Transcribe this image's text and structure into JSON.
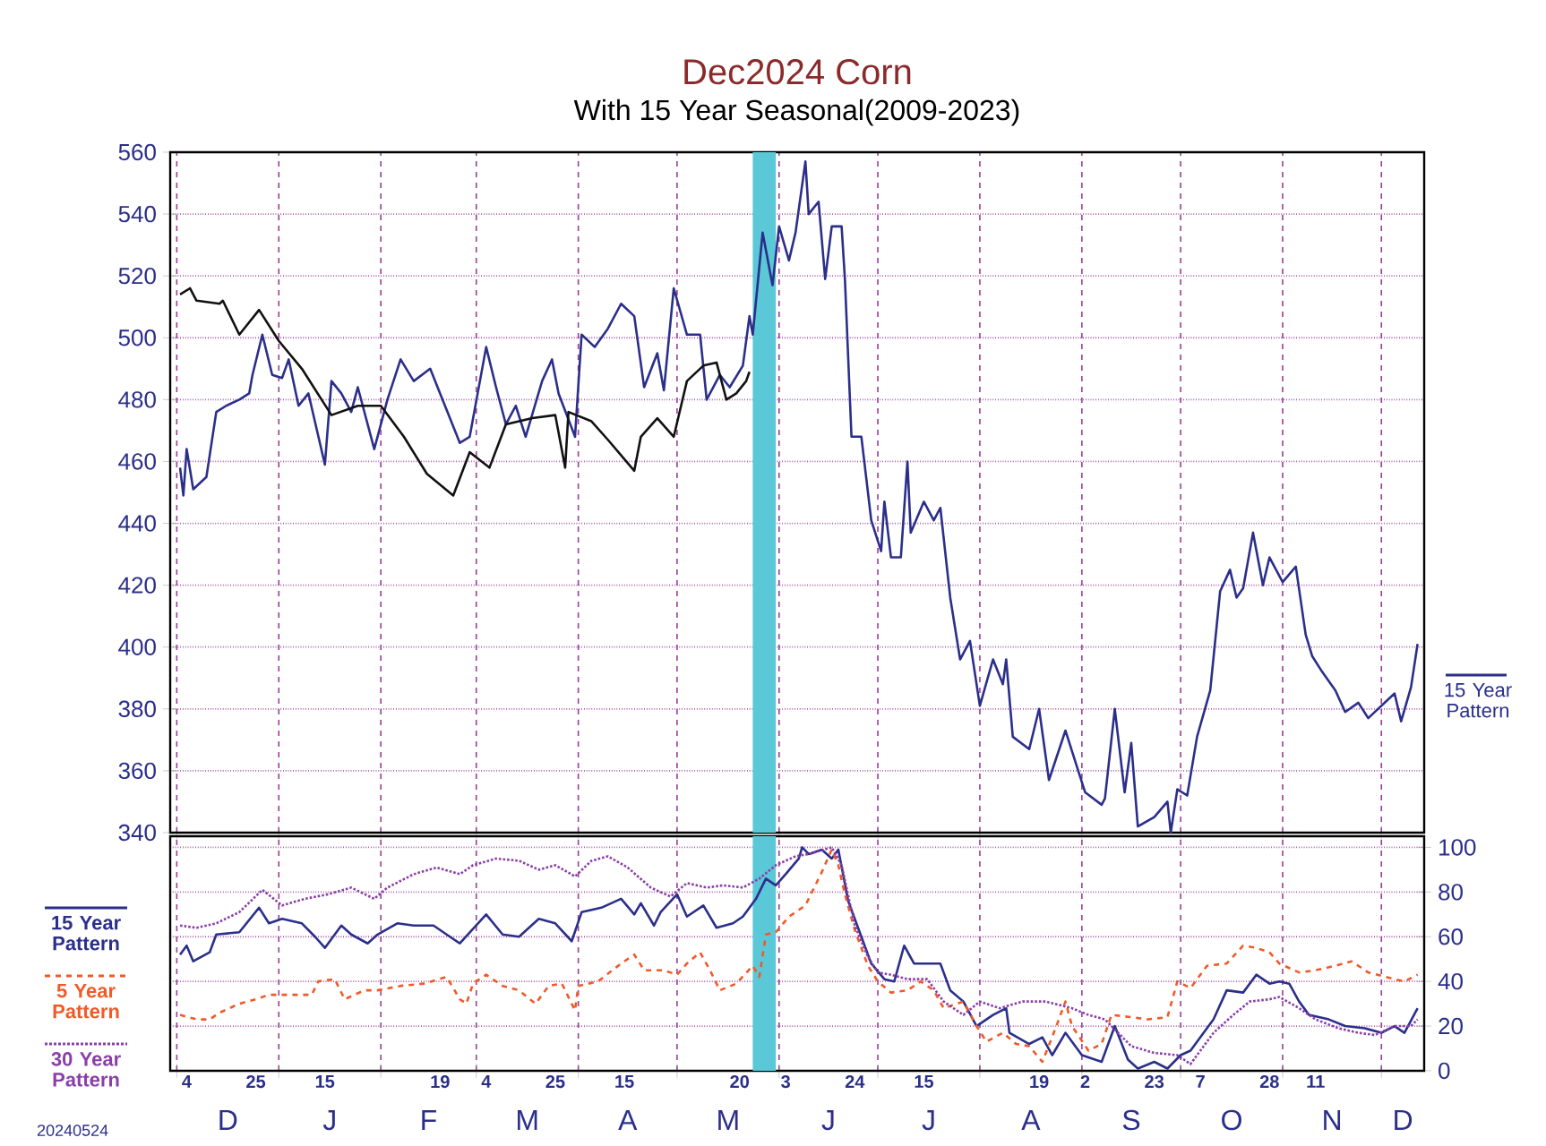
{
  "chart_data": [
    {
      "type": "line",
      "title": "Dec2024 Corn",
      "subtitle": "With 15 Year Seasonal(2009-2023)",
      "xlim": [
        "2023-11-29",
        "2024-12-14"
      ],
      "ylim": [
        340,
        560
      ],
      "yticks": [
        340,
        360,
        380,
        400,
        420,
        440,
        460,
        480,
        500,
        520,
        540,
        560
      ],
      "xticks": [
        {
          "value": "2023-12-01",
          "label": null
        },
        {
          "value": "2024-01-01",
          "label": null
        },
        {
          "value": "2024-02-01",
          "label": null
        },
        {
          "value": "2024-03-01",
          "label": null
        },
        {
          "value": "2024-04-01",
          "label": null
        },
        {
          "value": "2024-05-01",
          "label": null
        },
        {
          "value": "2024-06-01",
          "label": null
        },
        {
          "value": "2024-07-01",
          "label": null
        },
        {
          "value": "2024-08-01",
          "label": null
        },
        {
          "value": "2024-09-01",
          "label": null
        },
        {
          "value": "2024-10-01",
          "label": null
        },
        {
          "value": "2024-11-01",
          "label": null
        },
        {
          "value": "2024-12-01",
          "label": null
        }
      ],
      "tick_labels": "y",
      "grid": true,
      "legend": "right",
      "bands": [
        {
          "axis": "x",
          "from": "2024-05-24",
          "to": "2024-05-31",
          "color": "#5bc8d8"
        }
      ],
      "series": [
        {
          "name": "15 Year Pattern",
          "color": "#2b2f8a",
          "line_style": "solid",
          "x": [
            "2023-12-02",
            "2023-12-03",
            "2023-12-04",
            "2023-12-06",
            "2023-12-10",
            "2023-12-13",
            "2023-12-16",
            "2023-12-20",
            "2023-12-23",
            "2023-12-24",
            "2023-12-27",
            "2023-12-30",
            "2024-01-02",
            "2024-01-04",
            "2024-01-07",
            "2024-01-10",
            "2024-01-15",
            "2024-01-17",
            "2024-01-20",
            "2024-01-23",
            "2024-01-25",
            "2024-01-30",
            "2024-02-03",
            "2024-02-07",
            "2024-02-11",
            "2024-02-16",
            "2024-02-19",
            "2024-02-25",
            "2024-02-28",
            "2024-03-04",
            "2024-03-07",
            "2024-03-10",
            "2024-03-13",
            "2024-03-16",
            "2024-03-21",
            "2024-03-24",
            "2024-03-26",
            "2024-03-31",
            "2024-04-02",
            "2024-04-06",
            "2024-04-10",
            "2024-04-14",
            "2024-04-18",
            "2024-04-21",
            "2024-04-25",
            "2024-04-27",
            "2024-04-30",
            "2024-05-04",
            "2024-05-08",
            "2024-05-10",
            "2024-05-14",
            "2024-05-17",
            "2024-05-21",
            "2024-05-23",
            "2024-05-24",
            "2024-05-27",
            "2024-05-30",
            "2024-06-01",
            "2024-06-04",
            "2024-06-06",
            "2024-06-09",
            "2024-06-10",
            "2024-06-13",
            "2024-06-15",
            "2024-06-17",
            "2024-06-20",
            "2024-06-21",
            "2024-06-23",
            "2024-06-26",
            "2024-06-29",
            "2024-07-02",
            "2024-07-03",
            "2024-07-05",
            "2024-07-08",
            "2024-07-10",
            "2024-07-11",
            "2024-07-15",
            "2024-07-18",
            "2024-07-20",
            "2024-07-23",
            "2024-07-26",
            "2024-07-29",
            "2024-08-01",
            "2024-08-05",
            "2024-08-08",
            "2024-08-09",
            "2024-08-11",
            "2024-08-16",
            "2024-08-19",
            "2024-08-22",
            "2024-08-27",
            "2024-08-30",
            "2024-09-02",
            "2024-09-07",
            "2024-09-08",
            "2024-09-11",
            "2024-09-14",
            "2024-09-16",
            "2024-09-18",
            "2024-09-23",
            "2024-09-27",
            "2024-09-28",
            "2024-09-30",
            "2024-10-03",
            "2024-10-06",
            "2024-10-10",
            "2024-10-13",
            "2024-10-16",
            "2024-10-18",
            "2024-10-20",
            "2024-10-23",
            "2024-10-26",
            "2024-10-28",
            "2024-11-01",
            "2024-11-05",
            "2024-11-08",
            "2024-11-10",
            "2024-11-13",
            "2024-11-17",
            "2024-11-20",
            "2024-11-24",
            "2024-11-27",
            "2024-12-01",
            "2024-12-05",
            "2024-12-07",
            "2024-12-10",
            "2024-12-12"
          ],
          "values": [
            458,
            449,
            464,
            451,
            455,
            476,
            478,
            480,
            482,
            488,
            501,
            488,
            487,
            493,
            478,
            482,
            459,
            486,
            482,
            476,
            484,
            464,
            480,
            493,
            486,
            490,
            482,
            466,
            468,
            497,
            484,
            472,
            478,
            468,
            486,
            493,
            482,
            468,
            501,
            497,
            503,
            511,
            507,
            484,
            495,
            483,
            516,
            501,
            501,
            480,
            488,
            484,
            491,
            507,
            501,
            534,
            517,
            536,
            525,
            534,
            557,
            540,
            544,
            519,
            536,
            536,
            519,
            468,
            468,
            441,
            431,
            447,
            429,
            429,
            460,
            437,
            447,
            441,
            445,
            416,
            396,
            402,
            381,
            396,
            388,
            396,
            371,
            367,
            380,
            357,
            373,
            363,
            353,
            349,
            351,
            380,
            353,
            369,
            342,
            345,
            350,
            340,
            354,
            352,
            371,
            386,
            418,
            425,
            416,
            419,
            437,
            420,
            429,
            421,
            426,
            404,
            397,
            392,
            386,
            379,
            382,
            377,
            381,
            385,
            376,
            387,
            401
          ]
        },
        {
          "color": "#111111",
          "line_style": "solid",
          "x": [
            "2023-12-02",
            "2023-12-05",
            "2023-12-07",
            "2023-12-14",
            "2023-12-15",
            "2023-12-20",
            "2023-12-26",
            "2024-01-01",
            "2024-01-08",
            "2024-01-17",
            "2024-01-25",
            "2024-02-01",
            "2024-02-08",
            "2024-02-15",
            "2024-02-23",
            "2024-02-28",
            "2024-03-05",
            "2024-03-10",
            "2024-03-18",
            "2024-03-25",
            "2024-03-28",
            "2024-03-29",
            "2024-04-05",
            "2024-04-10",
            "2024-04-18",
            "2024-04-20",
            "2024-04-25",
            "2024-04-30",
            "2024-05-04",
            "2024-05-09",
            "2024-05-13",
            "2024-05-16",
            "2024-05-19",
            "2024-05-22",
            "2024-05-23"
          ],
          "values": [
            514,
            516,
            512,
            511,
            512,
            501,
            509,
            499,
            490,
            475,
            478,
            478,
            468,
            456,
            449,
            463,
            458,
            472,
            474,
            475,
            458,
            476,
            473,
            467,
            457,
            468,
            474,
            468,
            486,
            491,
            492,
            480,
            482,
            486,
            489
          ]
        }
      ]
    },
    {
      "type": "line",
      "xlim": [
        "2023-11-29",
        "2024-12-14"
      ],
      "y2lim": [
        0,
        105
      ],
      "y2ticks": [
        0,
        20,
        40,
        60,
        80,
        100
      ],
      "xticks": [
        {
          "value": "2023-12-01",
          "label": null
        },
        {
          "value": "2024-01-01",
          "label": null
        },
        {
          "value": "2024-02-01",
          "label": null
        },
        {
          "value": "2024-03-01",
          "label": null
        },
        {
          "value": "2024-04-01",
          "label": null
        },
        {
          "value": "2024-05-01",
          "label": null
        },
        {
          "value": "2024-06-01",
          "label": null
        },
        {
          "value": "2024-07-01",
          "label": null
        },
        {
          "value": "2024-08-01",
          "label": null
        },
        {
          "value": "2024-09-01",
          "label": null
        },
        {
          "value": "2024-10-01",
          "label": null
        },
        {
          "value": "2024-11-01",
          "label": null
        },
        {
          "value": "2024-12-01",
          "label": null
        },
        {
          "value": "2023-12-04",
          "label": "4"
        },
        {
          "value": "2023-12-25",
          "label": "25"
        },
        {
          "value": "2024-01-15",
          "label": "15"
        },
        {
          "value": "2024-02-19",
          "label": "19"
        },
        {
          "value": "2024-03-04",
          "label": "4"
        },
        {
          "value": "2024-03-25",
          "label": "25"
        },
        {
          "value": "2024-04-15",
          "label": "15"
        },
        {
          "value": "2024-05-20",
          "label": "20"
        },
        {
          "value": "2024-06-03",
          "label": "3"
        },
        {
          "value": "2024-06-24",
          "label": "24"
        },
        {
          "value": "2024-07-15",
          "label": "15"
        },
        {
          "value": "2024-08-19",
          "label": "19"
        },
        {
          "value": "2024-09-02",
          "label": "2"
        },
        {
          "value": "2024-09-23",
          "label": "23"
        },
        {
          "value": "2024-10-07",
          "label": "7"
        },
        {
          "value": "2024-10-28",
          "label": "28"
        },
        {
          "value": "2024-11-11",
          "label": "11"
        }
      ],
      "grid": true,
      "legend": "left",
      "annotations": [
        "20240524",
        "D",
        "J",
        "F",
        "M",
        "A",
        "M",
        "J",
        "J",
        "A",
        "S",
        "O",
        "N",
        "D"
      ],
      "bands": [
        {
          "axis": "x",
          "from": "2024-05-24",
          "to": "2024-05-31",
          "color": "#5bc8d8"
        }
      ],
      "series": [
        {
          "name": "15 Year Pattern",
          "color": "#2b2f8a",
          "line_style": "solid",
          "axis": "y2",
          "x": [
            "2023-12-02",
            "2023-12-04",
            "2023-12-06",
            "2023-12-11",
            "2023-12-13",
            "2023-12-20",
            "2023-12-26",
            "2023-12-29",
            "2024-01-02",
            "2024-01-08",
            "2024-01-12",
            "2024-01-15",
            "2024-01-20",
            "2024-01-23",
            "2024-01-28",
            "2024-01-31",
            "2024-02-06",
            "2024-02-11",
            "2024-02-17",
            "2024-02-25",
            "2024-03-04",
            "2024-03-09",
            "2024-03-14",
            "2024-03-20",
            "2024-03-25",
            "2024-03-30",
            "2024-04-02",
            "2024-04-08",
            "2024-04-14",
            "2024-04-18",
            "2024-04-20",
            "2024-04-24",
            "2024-04-26",
            "2024-05-01",
            "2024-05-04",
            "2024-05-09",
            "2024-05-13",
            "2024-05-18",
            "2024-05-21",
            "2024-05-25",
            "2024-05-28",
            "2024-05-31",
            "2024-06-03",
            "2024-06-07",
            "2024-06-08",
            "2024-06-10",
            "2024-06-14",
            "2024-06-17",
            "2024-06-19",
            "2024-06-22",
            "2024-06-26",
            "2024-06-29",
            "2024-07-03",
            "2024-07-06",
            "2024-07-09",
            "2024-07-12",
            "2024-07-20",
            "2024-07-23",
            "2024-07-27",
            "2024-07-31",
            "2024-08-05",
            "2024-08-09",
            "2024-08-10",
            "2024-08-16",
            "2024-08-20",
            "2024-08-23",
            "2024-08-27",
            "2024-09-01",
            "2024-09-07",
            "2024-09-11",
            "2024-09-15",
            "2024-09-18",
            "2024-09-23",
            "2024-09-27",
            "2024-10-01",
            "2024-10-04",
            "2024-10-08",
            "2024-10-11",
            "2024-10-15",
            "2024-10-20",
            "2024-10-24",
            "2024-10-28",
            "2024-10-31",
            "2024-11-03",
            "2024-11-06",
            "2024-11-09",
            "2024-11-15",
            "2024-11-20",
            "2024-11-26",
            "2024-12-01",
            "2024-12-05",
            "2024-12-08",
            "2024-12-12"
          ],
          "values": [
            52,
            56,
            49,
            53,
            61,
            62,
            73,
            66,
            68,
            66,
            60,
            55,
            65,
            61,
            57,
            61,
            66,
            65,
            65,
            57,
            70,
            61,
            60,
            68,
            66,
            58,
            71,
            73,
            77,
            70,
            75,
            65,
            71,
            79,
            69,
            74,
            64,
            66,
            69,
            77,
            86,
            83,
            88,
            95,
            100,
            97,
            99,
            95,
            99,
            76,
            60,
            48,
            41,
            40,
            56,
            48,
            48,
            36,
            31,
            20,
            25,
            28,
            17,
            12,
            15,
            7,
            17,
            7,
            4,
            20,
            5,
            1,
            4,
            1,
            7,
            9,
            17,
            23,
            36,
            35,
            43,
            39,
            40,
            39,
            31,
            25,
            23,
            20,
            19,
            17,
            20,
            17,
            28
          ]
        },
        {
          "name": "5 Year Pattern",
          "color": "#f05a28",
          "line_style": "dashed",
          "axis": "y2",
          "x": [
            "2023-12-02",
            "2023-12-07",
            "2023-12-11",
            "2023-12-14",
            "2023-12-20",
            "2023-12-25",
            "2023-12-29",
            "2024-01-05",
            "2024-01-11",
            "2024-01-13",
            "2024-01-18",
            "2024-01-21",
            "2024-01-27",
            "2024-01-31",
            "2024-02-07",
            "2024-02-14",
            "2024-02-21",
            "2024-02-25",
            "2024-02-27",
            "2024-02-29",
            "2024-03-04",
            "2024-03-09",
            "2024-03-14",
            "2024-03-19",
            "2024-03-23",
            "2024-03-27",
            "2024-03-30",
            "2024-03-31",
            "2024-04-01",
            "2024-04-07",
            "2024-04-14",
            "2024-04-18",
            "2024-04-21",
            "2024-04-27",
            "2024-05-01",
            "2024-05-04",
            "2024-05-08",
            "2024-05-11",
            "2024-05-14",
            "2024-05-19",
            "2024-05-24",
            "2024-05-26",
            "2024-05-28",
            "2024-05-31",
            "2024-06-04",
            "2024-06-09",
            "2024-06-14",
            "2024-06-17",
            "2024-06-19",
            "2024-06-21",
            "2024-06-24",
            "2024-06-28",
            "2024-07-01",
            "2024-07-05",
            "2024-07-10",
            "2024-07-14",
            "2024-07-18",
            "2024-07-21",
            "2024-07-27",
            "2024-07-31",
            "2024-08-03",
            "2024-08-08",
            "2024-08-12",
            "2024-08-16",
            "2024-08-20",
            "2024-08-24",
            "2024-08-27",
            "2024-08-29",
            "2024-09-03",
            "2024-09-07",
            "2024-09-10",
            "2024-09-16",
            "2024-09-21",
            "2024-09-27",
            "2024-09-30",
            "2024-10-04",
            "2024-10-09",
            "2024-10-15",
            "2024-10-20",
            "2024-10-24",
            "2024-10-28",
            "2024-10-31",
            "2024-11-06",
            "2024-11-11",
            "2024-11-17",
            "2024-11-22",
            "2024-11-27",
            "2024-12-05",
            "2024-12-08",
            "2024-12-12"
          ],
          "values": [
            25,
            23,
            23,
            26,
            30,
            32,
            34,
            34,
            34,
            40,
            41,
            32,
            36,
            36,
            38,
            39,
            42,
            32,
            30,
            39,
            43,
            38,
            36,
            30,
            38,
            39,
            30,
            27,
            38,
            40,
            48,
            52,
            45,
            45,
            43,
            48,
            53,
            45,
            36,
            39,
            47,
            42,
            61,
            62,
            69,
            74,
            89,
            99,
            92,
            79,
            63,
            47,
            40,
            35,
            36,
            40,
            36,
            28,
            31,
            20,
            13,
            17,
            12,
            11,
            4,
            19,
            31,
            20,
            9,
            12,
            25,
            24,
            23,
            24,
            40,
            37,
            47,
            48,
            56,
            55,
            53,
            48,
            44,
            45,
            47,
            49,
            44,
            41,
            40,
            43
          ]
        },
        {
          "name": "30 Year Pattern",
          "color": "#8a3fa8",
          "line_style": "dotted",
          "axis": "y2",
          "x": [
            "2023-12-02",
            "2023-12-07",
            "2023-12-13",
            "2023-12-20",
            "2023-12-27",
            "2024-01-02",
            "2024-01-09",
            "2024-01-16",
            "2024-01-23",
            "2024-01-30",
            "2024-02-03",
            "2024-02-11",
            "2024-02-18",
            "2024-02-25",
            "2024-02-29",
            "2024-03-07",
            "2024-03-14",
            "2024-03-20",
            "2024-03-25",
            "2024-03-31",
            "2024-04-05",
            "2024-04-10",
            "2024-04-16",
            "2024-04-23",
            "2024-04-29",
            "2024-05-04",
            "2024-05-10",
            "2024-05-15",
            "2024-05-21",
            "2024-05-26",
            "2024-05-31",
            "2024-06-06",
            "2024-06-10",
            "2024-06-17",
            "2024-06-20",
            "2024-06-24",
            "2024-06-28",
            "2024-07-01",
            "2024-07-05",
            "2024-07-10",
            "2024-07-16",
            "2024-07-21",
            "2024-07-27",
            "2024-08-01",
            "2024-08-07",
            "2024-08-14",
            "2024-08-21",
            "2024-08-29",
            "2024-09-03",
            "2024-09-08",
            "2024-09-16",
            "2024-09-23",
            "2024-09-30",
            "2024-10-04",
            "2024-10-08",
            "2024-10-11",
            "2024-10-17",
            "2024-10-22",
            "2024-10-28",
            "2024-10-31",
            "2024-11-06",
            "2024-11-11",
            "2024-11-18",
            "2024-11-24",
            "2024-11-29",
            "2024-12-05",
            "2024-12-10",
            "2024-12-12"
          ],
          "values": [
            65,
            64,
            66,
            71,
            81,
            74,
            77,
            79,
            82,
            77,
            82,
            88,
            91,
            88,
            92,
            95,
            94,
            90,
            92,
            87,
            94,
            96,
            91,
            82,
            78,
            84,
            82,
            83,
            82,
            86,
            92,
            96,
            97,
            100,
            92,
            65,
            51,
            44,
            43,
            41,
            41,
            31,
            25,
            31,
            28,
            31,
            31,
            28,
            25,
            23,
            11,
            8,
            7,
            3,
            11,
            17,
            25,
            31,
            32,
            33,
            28,
            23,
            19,
            17,
            16,
            20,
            20,
            23
          ]
        }
      ]
    }
  ]
}
